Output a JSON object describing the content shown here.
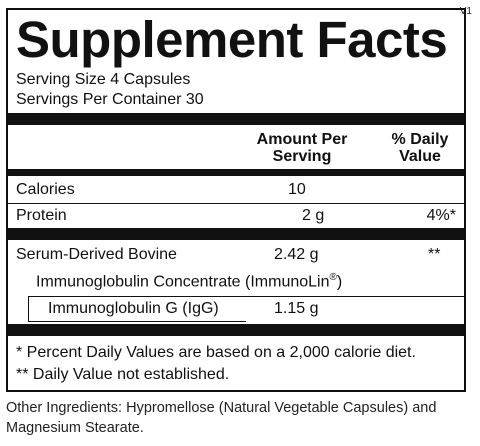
{
  "version": "V1",
  "title": "Supplement Facts",
  "serving_size": "Serving Size 4 Capsules",
  "servings_per_container": "Servings Per Container 30",
  "headers": {
    "amount": "Amount Per Serving",
    "amount_line1": "Amount Per",
    "amount_line2": "Serving",
    "dv": "% Daily Value",
    "dv_line1": "% Daily",
    "dv_line2": "Value"
  },
  "rows": [
    {
      "name": "Calories",
      "amount": "10",
      "dv": ""
    },
    {
      "name": "Protein",
      "amount": "2 g",
      "dv": "4%*"
    },
    {
      "name": "Serum-Derived Bovine",
      "name_line2": "Immunoglobulin Concentrate (ImmunoLin",
      "reg": "®",
      "name_line2_end": ")",
      "amount": "2.42 g",
      "dv": "**"
    },
    {
      "name": "Immunoglobulin G (IgG)",
      "amount": "1.15 g",
      "dv": ""
    }
  ],
  "footnotes": [
    "* Percent Daily Values are based on a 2,000 calorie diet.",
    "** Daily Value not established."
  ],
  "other_ingredients": "Other Ingredients: Hypromellose (Natural Vegetable Capsules) and Magnesium Stearate."
}
